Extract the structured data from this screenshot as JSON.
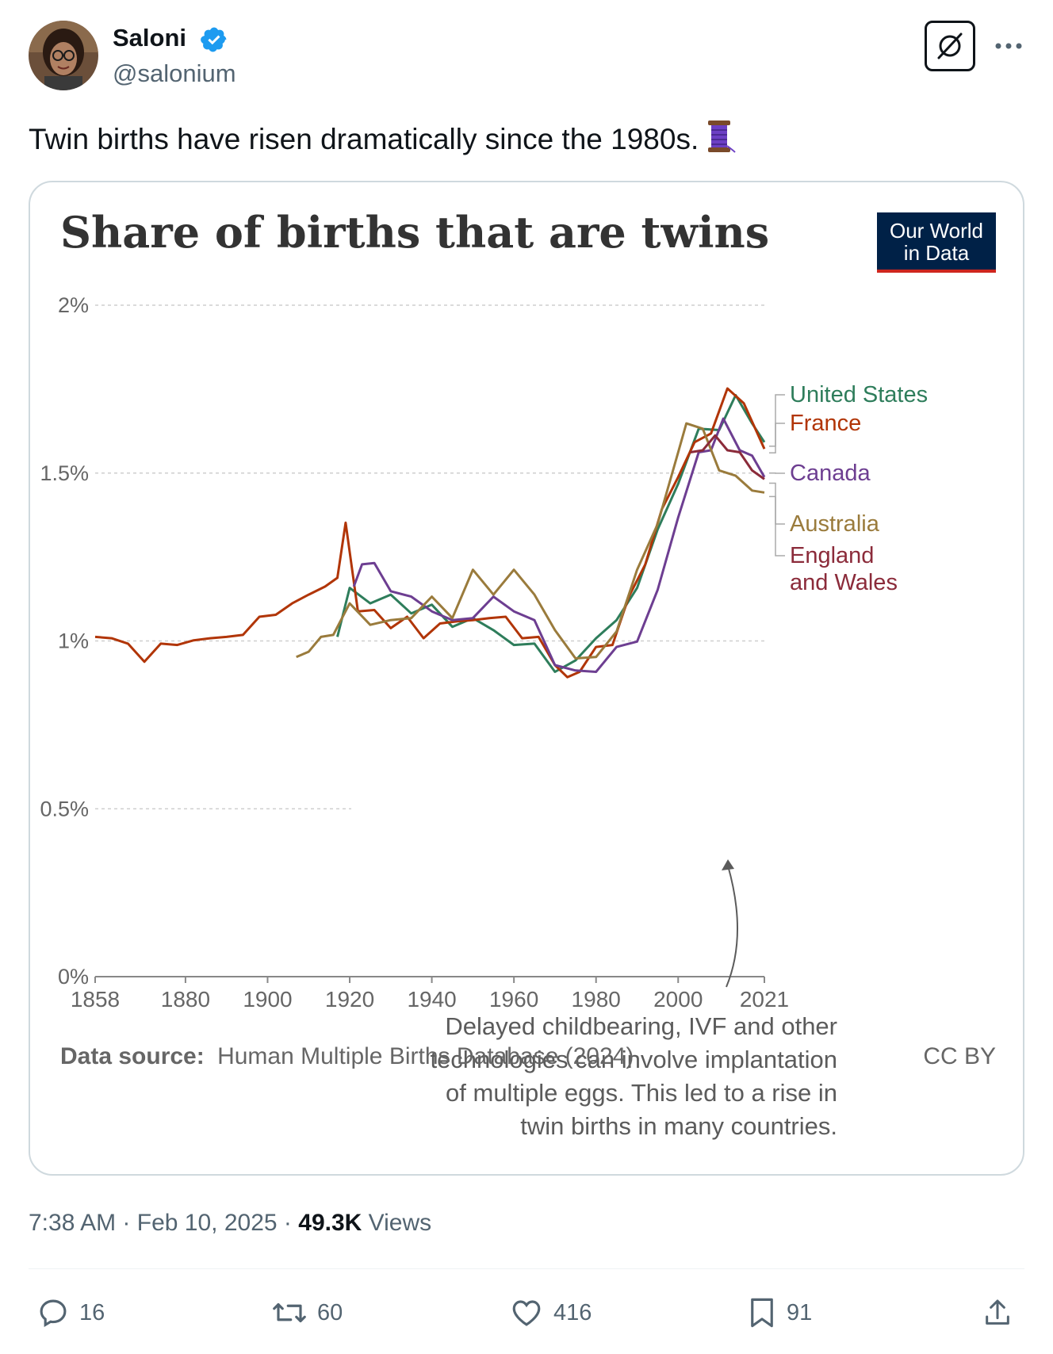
{
  "author": {
    "display_name": "Saloni",
    "handle": "@salonium",
    "verified_color": "#1d9bf0"
  },
  "tweet": {
    "text": "Twin births have risen dramatically since the 1980s.",
    "emoji_icon": "spool-of-thread-icon"
  },
  "header_actions": {
    "grok_icon": "grok-icon",
    "more_icon": "more-icon"
  },
  "card": {
    "title": "Share of births that are twins",
    "logo_line1": "Our World",
    "logo_line2": "in Data",
    "source_label": "Data source:",
    "source_text": "Human Multiple Births Database (2024)",
    "license": "CC BY",
    "annotation": [
      "Delayed childbearing, IVF and other",
      "technologies can involve implantation",
      "of multiple eggs. This led to a rise in",
      "twin births in many countries."
    ]
  },
  "chart_data": {
    "type": "line",
    "title": "Share of births that are twins",
    "xlabel": "",
    "ylabel": "",
    "xlim": [
      1858,
      2021
    ],
    "ylim": [
      0,
      2
    ],
    "x_ticks": [
      "1858",
      "1880",
      "1900",
      "1920",
      "1940",
      "1960",
      "1980",
      "2000",
      "2021"
    ],
    "y_ticks": [
      "0%",
      "0.5%",
      "1%",
      "1.5%",
      "2%"
    ],
    "grid": "horizontal dotted",
    "legend": "labels at right end of lines",
    "series": [
      {
        "name": "United States",
        "color": "#2e7d5b",
        "x": [
          1917,
          1920,
          1925,
          1930,
          1935,
          1940,
          1945,
          1950,
          1955,
          1960,
          1965,
          1970,
          1975,
          1980,
          1985,
          1990,
          1995,
          2000,
          2005,
          2010,
          2014,
          2018,
          2021
        ],
        "y": [
          1.0,
          1.17,
          1.1,
          1.15,
          1.07,
          1.12,
          1.03,
          1.08,
          1.02,
          1.0,
          0.98,
          0.92,
          0.93,
          1.02,
          1.05,
          1.17,
          1.32,
          1.48,
          1.62,
          1.64,
          1.72,
          1.66,
          1.58
        ]
      },
      {
        "name": "France",
        "color": "#b13507",
        "x": [
          1858,
          1862,
          1866,
          1870,
          1874,
          1878,
          1882,
          1886,
          1890,
          1894,
          1898,
          1902,
          1906,
          1910,
          1914,
          1917,
          1919,
          1922,
          1926,
          1930,
          1934,
          1938,
          1942,
          1946,
          1950,
          1954,
          1958,
          1962,
          1966,
          1970,
          1973,
          1976,
          1980,
          1984,
          1988,
          1992,
          1996,
          2000,
          2004,
          2008,
          2012,
          2016,
          2021
        ],
        "y": [
          1.0,
          1.02,
          0.98,
          0.95,
          0.98,
          1.0,
          0.99,
          1.02,
          1.0,
          1.03,
          1.06,
          1.09,
          1.1,
          1.15,
          1.15,
          1.2,
          1.34,
          1.1,
          1.08,
          1.05,
          1.06,
          1.02,
          1.04,
          1.07,
          1.05,
          1.08,
          1.06,
          1.02,
          1.0,
          0.94,
          0.88,
          0.92,
          0.97,
          1.0,
          1.12,
          1.24,
          1.38,
          1.5,
          1.58,
          1.63,
          1.74,
          1.72,
          1.56
        ]
      },
      {
        "name": "Canada",
        "color": "#6d3e91",
        "x": [
          1921,
          1923,
          1926,
          1930,
          1935,
          1940,
          1945,
          1950,
          1955,
          1960,
          1965,
          1970,
          1975,
          1980,
          1985,
          1990,
          1995,
          2000,
          2005,
          2008,
          2011,
          2015,
          2018,
          2021
        ],
        "y": [
          1.15,
          1.24,
          1.22,
          1.16,
          1.12,
          1.1,
          1.05,
          1.08,
          1.12,
          1.1,
          1.05,
          0.94,
          0.9,
          0.92,
          0.97,
          1.01,
          1.14,
          1.38,
          1.55,
          1.58,
          1.65,
          1.58,
          1.54,
          1.5
        ]
      },
      {
        "name": "Australia",
        "color": "#9a7b3c",
        "x": [
          1907,
          1910,
          1913,
          1916,
          1920,
          1925,
          1930,
          1935,
          1940,
          1945,
          1950,
          1955,
          1960,
          1965,
          1970,
          1975,
          1980,
          1985,
          1990,
          1995,
          2000,
          2002,
          2006,
          2010,
          2014,
          2018,
          2021
        ],
        "y": [
          0.94,
          0.98,
          1.0,
          1.03,
          1.1,
          1.06,
          1.05,
          1.08,
          1.12,
          1.08,
          1.2,
          1.15,
          1.2,
          1.15,
          1.02,
          0.96,
          0.94,
          1.04,
          1.2,
          1.36,
          1.55,
          1.66,
          1.62,
          1.52,
          1.48,
          1.46,
          1.43
        ]
      },
      {
        "name": "England and Wales",
        "color": "#8b2b3a",
        "x": [
          2003,
          2006,
          2009,
          2012,
          2015,
          2018,
          2021
        ],
        "y": [
          1.55,
          1.58,
          1.6,
          1.58,
          1.55,
          1.52,
          1.47
        ]
      }
    ]
  },
  "meta": {
    "time": "7:38 AM",
    "date": "Feb 10, 2025",
    "views_count": "49.3K",
    "views_label": "Views",
    "separator": "·"
  },
  "actions": {
    "reply_count": "16",
    "retweet_count": "60",
    "like_count": "416",
    "bookmark_count": "91"
  }
}
